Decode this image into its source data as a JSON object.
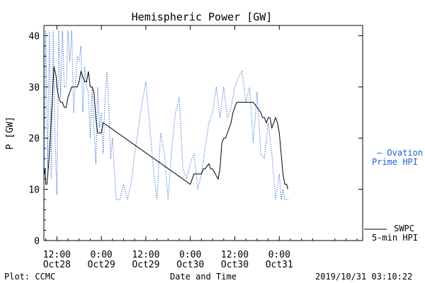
{
  "chart_data": {
    "type": "line",
    "title": "Hemispheric Power [GW]",
    "xlabel": "Date and Time",
    "ylabel": "P [GW]",
    "ylim": [
      0,
      42
    ],
    "yticks": [
      0,
      10,
      20,
      30,
      40
    ],
    "xlim_hours": [
      -15.5,
      70.5
    ],
    "xticks": [
      {
        "hour": -12,
        "time": "12:00",
        "date": "Oct28"
      },
      {
        "hour": 0,
        "time": "0:00",
        "date": "Oct29"
      },
      {
        "hour": 12,
        "time": "12:00",
        "date": "Oct29"
      },
      {
        "hour": 24,
        "time": "0:00",
        "date": "Oct30"
      },
      {
        "hour": 36,
        "time": "12:00",
        "date": "Oct30"
      },
      {
        "hour": 48,
        "time": "0:00",
        "date": "Oct31"
      }
    ],
    "legend": [
      {
        "label": "— Ovation Prime HPI",
        "color": "#1f5fd0"
      },
      {
        "label": "SWPC 5-min HPI",
        "color": "#000000"
      }
    ],
    "series": [
      {
        "name": "SWPC 5-min HPI",
        "color": "#000000",
        "style": "solid",
        "x_hours": [
          -15.4,
          -15.2,
          -15.0,
          -14.7,
          -14.2,
          -13.8,
          -13.2,
          -12.8,
          -12.2,
          -12.0,
          -11.5,
          -11.0,
          -10.5,
          -10.0,
          -9.5,
          -9.0,
          -8.0,
          -7.5,
          -6.5,
          -6.0,
          -5.5,
          -5.0,
          -4.5,
          -4.0,
          -3.5,
          -3.0,
          -2.5,
          -2.0,
          -1.5,
          -1.0,
          0.0,
          0.2,
          0.5,
          24.0,
          24.5,
          25.0,
          26.0,
          27.0,
          27.5,
          28.0,
          29.0,
          29.5,
          30.0,
          31.5,
          32.0,
          32.5,
          33.0,
          33.5,
          34.0,
          35.0,
          35.5,
          36.0,
          36.5,
          37.0,
          38.0,
          38.5,
          39.0,
          40.0,
          41.0,
          42.0,
          43.0,
          43.5,
          44.0,
          44.5,
          45.0,
          45.5,
          46.0,
          47.0,
          47.5,
          48.0,
          48.5,
          49.0,
          49.5,
          50.0,
          50.3
        ],
        "values": [
          13,
          14,
          11,
          11,
          15,
          20,
          28,
          34,
          32,
          30,
          28,
          27,
          27,
          26,
          26,
          28,
          30,
          30,
          30,
          31,
          33,
          32,
          31,
          31,
          33,
          30,
          30,
          29,
          24,
          21,
          21,
          22,
          23,
          11,
          12,
          13,
          13,
          13,
          14,
          14,
          15,
          14,
          14,
          12,
          14,
          19,
          20,
          20,
          21,
          23,
          25,
          26,
          27,
          27,
          27,
          27,
          27,
          27,
          27,
          26,
          25,
          24,
          24,
          23,
          24,
          24,
          22,
          24,
          23,
          21,
          17,
          13,
          11,
          11,
          10
        ]
      },
      {
        "name": "Ovation Prime HPI",
        "color": "#1f5fd0",
        "style": "dotted",
        "x_hours": [
          -15.5,
          -15.0,
          -14.5,
          -14.0,
          -13.5,
          -13.0,
          -12.5,
          -12.0,
          -11.5,
          -11.0,
          -10.5,
          -10.0,
          -9.5,
          -9.0,
          -8.5,
          -8.0,
          -7.5,
          -7.0,
          -6.5,
          -6.0,
          -5.5,
          -5.0,
          -4.5,
          -4.0,
          -3.5,
          -3.0,
          -2.5,
          -2.0,
          -1.5,
          -1.0,
          -0.5,
          0.0,
          0.5,
          1.0,
          1.5,
          2.0,
          2.5,
          3.0,
          4.0,
          5.0,
          6.0,
          7.0,
          8.0,
          9.0,
          10.0,
          11.0,
          12.0,
          13.0,
          14.0,
          15.0,
          16.0,
          17.0,
          18.0,
          19.0,
          20.0,
          21.0,
          22.0,
          23.0,
          24.0,
          25.0,
          26.0,
          27.0,
          28.0,
          29.0,
          30.0,
          31.0,
          32.0,
          33.0,
          34.0,
          35.0,
          36.0,
          37.0,
          38.0,
          39.0,
          40.0,
          41.0,
          42.0,
          43.0,
          44.0,
          45.0,
          46.0,
          47.0,
          48.0,
          48.5,
          49.0,
          49.5,
          50.0,
          50.5
        ],
        "values": [
          10,
          41,
          14,
          41,
          12,
          41,
          20,
          9,
          41,
          28,
          41,
          30,
          30,
          41,
          35,
          41,
          25,
          31,
          36,
          35,
          38,
          25,
          34,
          30,
          29,
          20,
          30,
          22,
          15,
          30,
          22,
          25,
          17,
          28,
          33,
          26,
          16,
          20,
          8,
          8,
          11,
          8,
          11,
          17,
          22,
          27,
          31,
          23,
          14,
          8,
          21,
          17,
          8,
          18,
          25,
          28,
          14,
          12,
          15,
          17,
          10,
          13,
          18,
          23,
          25,
          30,
          24,
          30,
          24,
          26,
          30,
          32,
          33,
          27,
          30,
          19,
          29,
          17,
          16,
          23,
          17,
          8,
          13,
          8,
          10,
          8,
          8,
          8
        ]
      }
    ]
  },
  "footer": {
    "left": "Plot: CCMC",
    "center": "Date and Time",
    "right": "2019/10/31 03:10:22"
  }
}
